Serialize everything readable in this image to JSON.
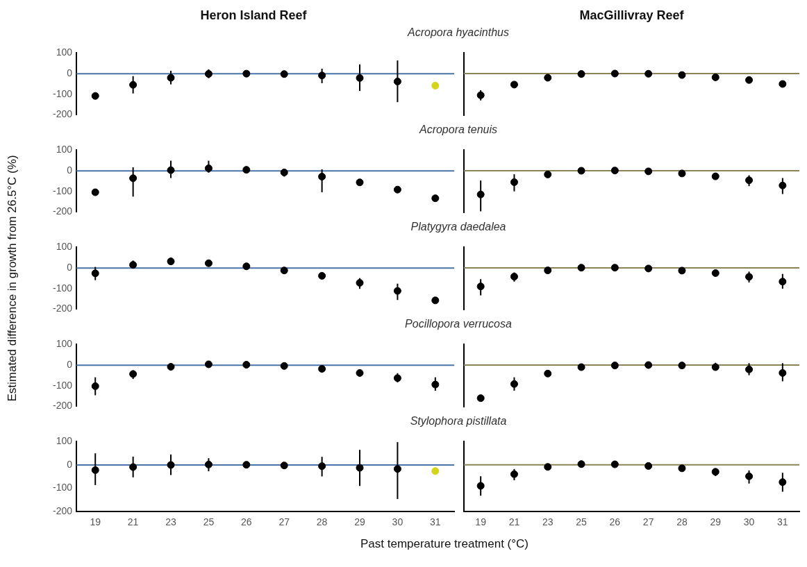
{
  "chart_data": [
    {
      "type": "scatter",
      "title": "Heron Island Reef",
      "subtitle": "Acropora hyacinthus",
      "categories": [
        "19",
        "21",
        "23",
        "25",
        "26",
        "27",
        "28",
        "29",
        "30",
        "31"
      ],
      "values": [
        -108,
        -54,
        -20,
        -1,
        0,
        -2,
        -9,
        -21,
        -38,
        -58
      ],
      "errors": [
        null,
        [
          -96,
          -12
        ],
        [
          -52,
          14
        ],
        [
          -22,
          21
        ],
        null,
        null,
        [
          -46,
          24
        ],
        [
          -84,
          45
        ],
        [
          -138,
          64
        ],
        null
      ],
      "colors": [
        "#000000",
        "#000000",
        "#000000",
        "#000000",
        "#000000",
        "#000000",
        "#000000",
        "#000000",
        "#000000",
        "#d4d41a"
      ],
      "ylim": [
        -200,
        100
      ],
      "yticks": [
        -200,
        -100,
        0,
        100
      ],
      "ref_lines": [
        {
          "axis": "y",
          "value": 0,
          "color": "#4a74a8"
        }
      ],
      "tick_labels": "y",
      "marker": "circle"
    },
    {
      "type": "scatter",
      "title": "MacGillivray Reef",
      "categories": [
        "19",
        "21",
        "23",
        "25",
        "26",
        "27",
        "28",
        "29",
        "30",
        "31"
      ],
      "values": [
        -104,
        -53,
        -20,
        -2,
        0,
        -1,
        -7,
        -18,
        -31,
        -50
      ],
      "errors": [
        [
          -129,
          -80
        ],
        null,
        null,
        null,
        null,
        null,
        null,
        null,
        null,
        [
          -62,
          -38
        ]
      ],
      "color": "#000000",
      "ylim": [
        -200,
        100
      ],
      "yticks": [
        -200,
        -100,
        0,
        100
      ],
      "ref_lines": [
        {
          "axis": "y",
          "value": 0,
          "color": "#8a8358"
        }
      ],
      "tick_labels": false,
      "marker": "circle"
    },
    {
      "type": "scatter",
      "subtitle": "Acropora tenuis",
      "categories": [
        "19",
        "21",
        "23",
        "25",
        "26",
        "27",
        "28",
        "29",
        "30",
        "31"
      ],
      "values": [
        -104,
        -36,
        3,
        12,
        5,
        -8,
        -28,
        -56,
        -91,
        -133
      ],
      "errors": [
        null,
        [
          -125,
          17
        ],
        [
          -35,
          49
        ],
        [
          -9,
          49
        ],
        [
          -7,
          19
        ],
        [
          -28,
          3
        ],
        [
          -104,
          7
        ],
        null,
        null,
        null
      ],
      "color": "#000000",
      "ylim": [
        -200,
        100
      ],
      "yticks": [
        -200,
        -100,
        0,
        100
      ],
      "ref_lines": [
        {
          "axis": "y",
          "value": 0,
          "color": "#4a74a8"
        }
      ],
      "tick_labels": "y",
      "marker": "circle"
    },
    {
      "type": "scatter",
      "categories": [
        "19",
        "21",
        "23",
        "25",
        "26",
        "27",
        "28",
        "29",
        "30",
        "31"
      ],
      "values": [
        -114,
        -55,
        -18,
        0,
        1,
        -3,
        -13,
        -27,
        -46,
        -71
      ],
      "errors": [
        [
          -195,
          -47
        ],
        [
          -99,
          -17
        ],
        [
          -30,
          -8
        ],
        null,
        null,
        null,
        null,
        [
          -43,
          -16
        ],
        [
          -74,
          -22
        ],
        [
          -112,
          -35
        ]
      ],
      "color": "#000000",
      "ylim": [
        -200,
        100
      ],
      "yticks": [
        -200,
        -100,
        0,
        100
      ],
      "ref_lines": [
        {
          "axis": "y",
          "value": 0,
          "color": "#8a8358"
        }
      ],
      "tick_labels": false,
      "marker": "circle"
    },
    {
      "type": "scatter",
      "subtitle": "Platygyra daedalea",
      "ylabel": "Estimated difference in growth from 26.5°C (%)",
      "categories": [
        "19",
        "21",
        "23",
        "25",
        "26",
        "27",
        "28",
        "29",
        "30",
        "31"
      ],
      "values": [
        -26,
        15,
        32,
        23,
        8,
        -12,
        -38,
        -72,
        -111,
        -157
      ],
      "errors": [
        [
          -59,
          5
        ],
        [
          2,
          36
        ],
        [
          21,
          48
        ],
        null,
        null,
        null,
        [
          -52,
          -27
        ],
        [
          -101,
          -49
        ],
        [
          -155,
          -76
        ],
        null
      ],
      "color": "#000000",
      "ylim": [
        -200,
        100
      ],
      "yticks": [
        -200,
        -100,
        0,
        100
      ],
      "ref_lines": [
        {
          "axis": "y",
          "value": 0,
          "color": "#4a74a8"
        }
      ],
      "tick_labels": "y",
      "marker": "circle"
    },
    {
      "type": "scatter",
      "categories": [
        "19",
        "21",
        "23",
        "25",
        "26",
        "27",
        "28",
        "29",
        "30",
        "31"
      ],
      "values": [
        -89,
        -42,
        -12,
        1,
        1,
        -3,
        -13,
        -25,
        -43,
        -66
      ],
      "errors": [
        [
          -132,
          -54
        ],
        [
          -66,
          -22
        ],
        null,
        null,
        null,
        null,
        null,
        null,
        [
          -70,
          -18
        ],
        [
          -100,
          -29
        ]
      ],
      "color": "#000000",
      "ylim": [
        -200,
        100
      ],
      "yticks": [
        -200,
        -100,
        0,
        100
      ],
      "ref_lines": [
        {
          "axis": "y",
          "value": 0,
          "color": "#8a8358"
        }
      ],
      "tick_labels": false,
      "marker": "circle"
    },
    {
      "type": "scatter",
      "subtitle": "Pocillopora verrucosa",
      "categories": [
        "19",
        "21",
        "23",
        "25",
        "26",
        "27",
        "28",
        "29",
        "30",
        "31"
      ],
      "values": [
        -102,
        -43,
        -8,
        4,
        2,
        -4,
        -18,
        -38,
        -63,
        -94
      ],
      "errors": [
        [
          -146,
          -59
        ],
        [
          -67,
          -25
        ],
        null,
        null,
        null,
        null,
        null,
        null,
        [
          -83,
          -39
        ],
        [
          -124,
          -59
        ]
      ],
      "color": "#000000",
      "ylim": [
        -200,
        100
      ],
      "yticks": [
        -200,
        -100,
        0,
        100
      ],
      "ref_lines": [
        {
          "axis": "y",
          "value": 0,
          "color": "#4a74a8"
        }
      ],
      "tick_labels": "y",
      "marker": "circle"
    },
    {
      "type": "scatter",
      "categories": [
        "19",
        "21",
        "23",
        "25",
        "26",
        "27",
        "28",
        "29",
        "30",
        "31"
      ],
      "values": [
        -159,
        -91,
        -41,
        -10,
        -2,
        0,
        -2,
        -10,
        -21,
        -38
      ],
      "errors": [
        null,
        [
          -123,
          -59
        ],
        [
          -54,
          -32
        ],
        null,
        null,
        null,
        null,
        [
          -25,
          11
        ],
        [
          -49,
          9
        ],
        [
          -78,
          9
        ]
      ],
      "color": "#000000",
      "ylim": [
        -200,
        100
      ],
      "yticks": [
        -200,
        -100,
        0,
        100
      ],
      "ref_lines": [
        {
          "axis": "y",
          "value": 0,
          "color": "#8a8358"
        }
      ],
      "tick_labels": false,
      "marker": "circle"
    },
    {
      "type": "scatter",
      "subtitle": "Stylophora pistillata",
      "xlabel": "Past temperature treatment (°C)",
      "categories": [
        "19",
        "21",
        "23",
        "25",
        "26",
        "27",
        "28",
        "29",
        "30",
        "31"
      ],
      "values": [
        -22,
        -9,
        0,
        2,
        1,
        -2,
        -5,
        -12,
        -17,
        -26
      ],
      "errors": [
        [
          -86,
          50
        ],
        [
          -53,
          36
        ],
        [
          -43,
          45
        ],
        [
          -27,
          29
        ],
        null,
        null,
        [
          -49,
          35
        ],
        [
          -90,
          65
        ],
        [
          -146,
          98
        ],
        null
      ],
      "colors": [
        "#000000",
        "#000000",
        "#000000",
        "#000000",
        "#000000",
        "#000000",
        "#000000",
        "#000000",
        "#000000",
        "#d4d41a"
      ],
      "ylim": [
        -200,
        100
      ],
      "yticks": [
        -200,
        -100,
        0,
        100
      ],
      "ref_lines": [
        {
          "axis": "y",
          "value": 0,
          "color": "#4a74a8"
        }
      ],
      "marker": "circle"
    },
    {
      "type": "scatter",
      "categories": [
        "19",
        "21",
        "23",
        "25",
        "26",
        "27",
        "28",
        "29",
        "30",
        "31"
      ],
      "values": [
        -90,
        -40,
        -9,
        3,
        2,
        -5,
        -15,
        -30,
        -49,
        -74
      ],
      "errors": [
        [
          -132,
          -49
        ],
        [
          -66,
          -18
        ],
        null,
        null,
        null,
        null,
        null,
        [
          -48,
          -16
        ],
        [
          -80,
          -24
        ],
        [
          -115,
          -34
        ]
      ],
      "color": "#000000",
      "ylim": [
        -200,
        100
      ],
      "yticks": [
        -200,
        -100,
        0,
        100
      ],
      "ref_lines": [
        {
          "axis": "y",
          "value": 0,
          "color": "#8a8358"
        }
      ],
      "tick_labels": "x",
      "marker": "circle"
    }
  ]
}
